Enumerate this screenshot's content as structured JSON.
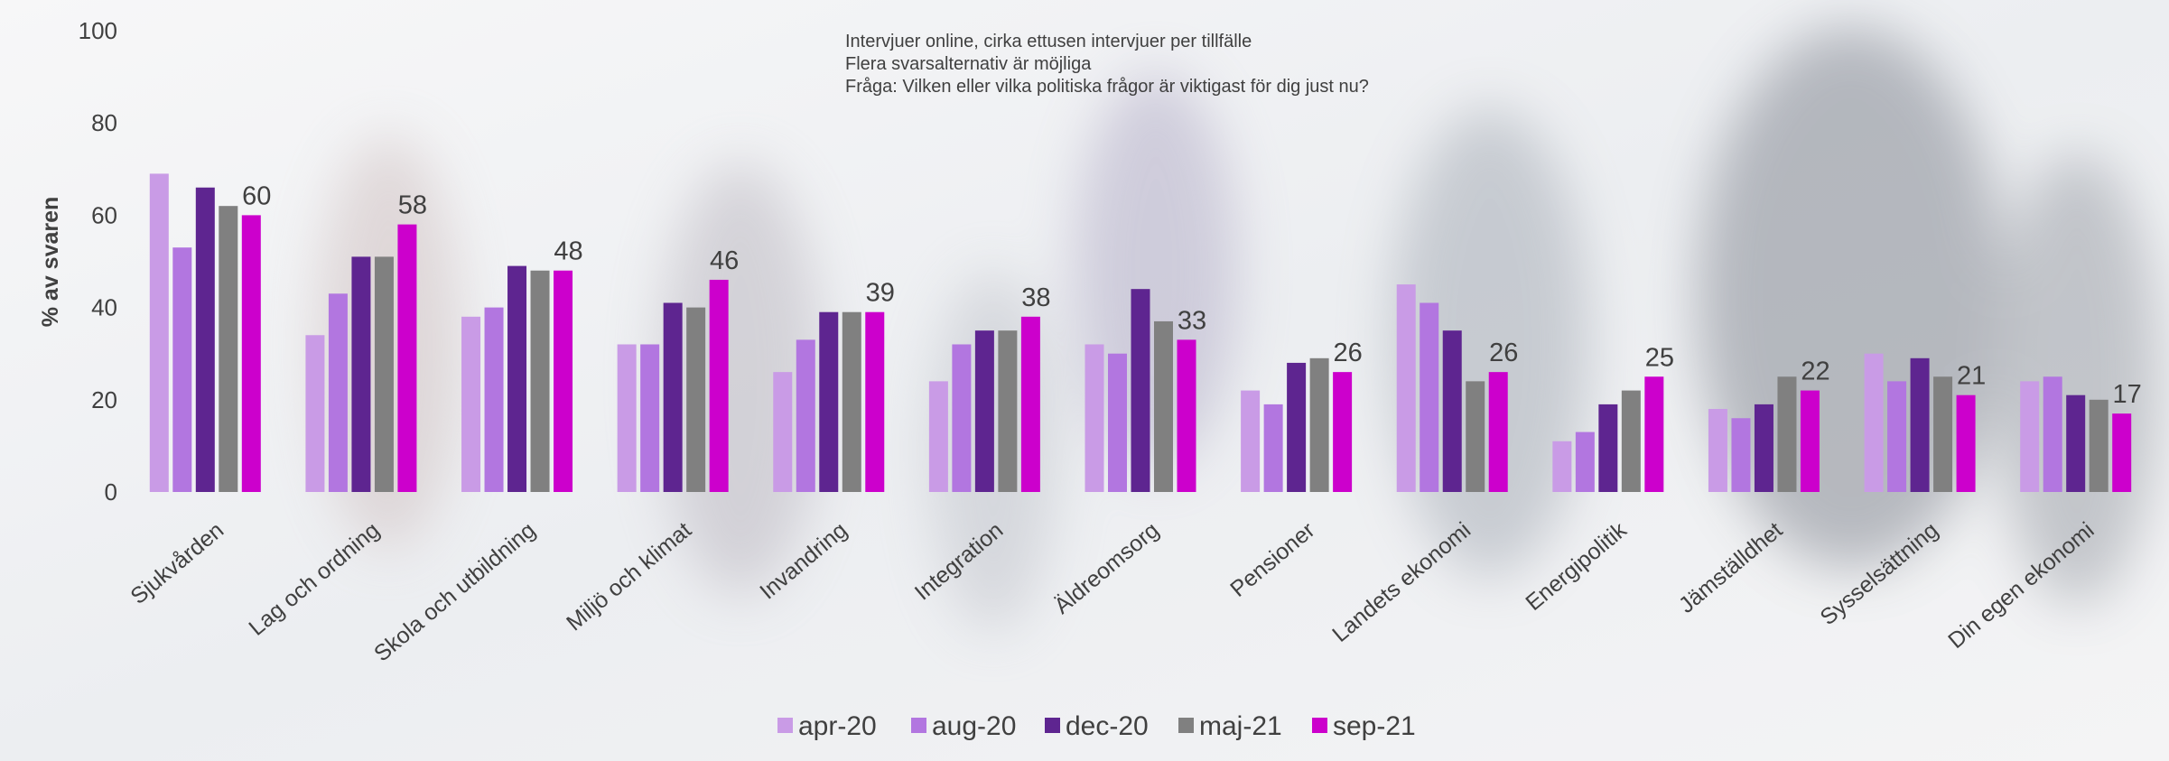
{
  "chart_data": {
    "type": "bar",
    "notes": [
      "Intervjuer online, cirka ettusen intervjuer per tillfälle",
      "Flera svarsalternativ är möjliga",
      "Fråga: Vilken eller vilka politiska frågor är viktigast för dig just nu?"
    ],
    "y_label": "% av svaren",
    "categories": [
      "Sjukvården",
      "Lag och ordning",
      "Skola och utbildning",
      "Miljö och klimat",
      "Invandring",
      "Integration",
      "Äldreomsorg",
      "Pensioner",
      "Landets ekonomi",
      "Energipolitik",
      "Jämställdhet",
      "Sysselsättning",
      "Din egen ekonomi"
    ],
    "series": [
      {
        "name": "apr-20",
        "color": "#c99be6",
        "values": [
          69,
          34,
          38,
          32,
          26,
          24,
          32,
          22,
          45,
          11,
          18,
          30,
          24
        ]
      },
      {
        "name": "aug-20",
        "color": "#b276e0",
        "values": [
          53,
          43,
          40,
          32,
          33,
          32,
          30,
          19,
          41,
          13,
          16,
          24,
          25
        ]
      },
      {
        "name": "dec-20",
        "color": "#5e2590",
        "values": [
          66,
          51,
          49,
          41,
          39,
          35,
          44,
          28,
          35,
          19,
          19,
          29,
          21
        ]
      },
      {
        "name": "maj-21",
        "color": "#808080",
        "values": [
          62,
          51,
          48,
          40,
          39,
          35,
          37,
          29,
          24,
          22,
          25,
          25,
          20
        ]
      },
      {
        "name": "sep-21",
        "color": "#cc00cc",
        "values": [
          60,
          58,
          48,
          46,
          39,
          38,
          33,
          26,
          26,
          25,
          22,
          21,
          17
        ],
        "show_labels": true
      }
    ],
    "ylim": [
      0,
      100
    ],
    "yticks": [
      0,
      20,
      40,
      60,
      80,
      100
    ],
    "legend": "bottom"
  }
}
